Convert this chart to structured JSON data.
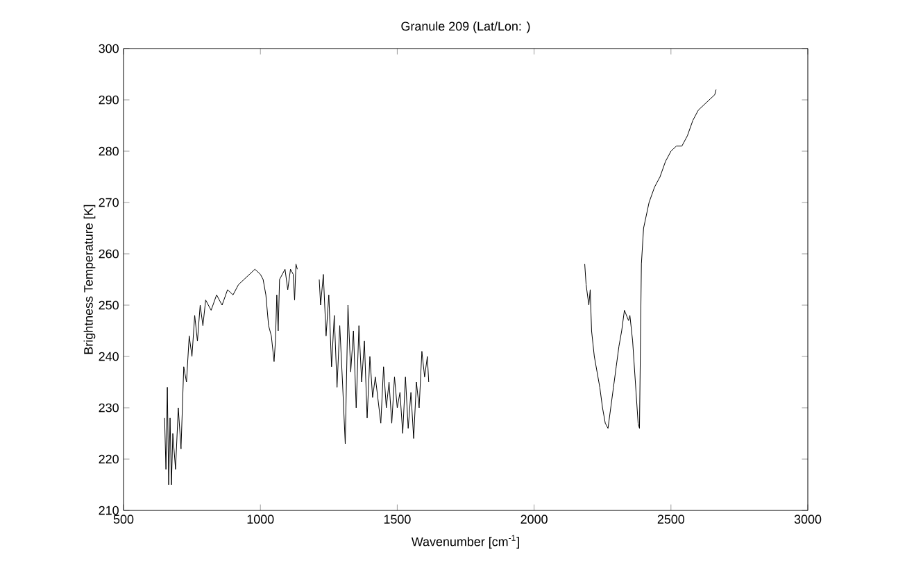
{
  "chart_data": {
    "type": "line",
    "title": "Granule 209 (Lat/Lon: )",
    "xlabel": "Wavenumber [cm$^{-1}$]",
    "ylabel": "Brightness Temperature [K]",
    "x": [
      650,
      655,
      660,
      665,
      670,
      675,
      680,
      690,
      700,
      710,
      720,
      730,
      740,
      750,
      760,
      770,
      780,
      790,
      800,
      820,
      840,
      860,
      880,
      900,
      920,
      940,
      960,
      980,
      1000,
      1010,
      1020,
      1030,
      1040,
      1050,
      1055,
      1060,
      1065,
      1070,
      1080,
      1090,
      1100,
      1110,
      1120,
      1125,
      1130,
      1135,
      1175,
      1215,
      1220,
      1230,
      1240,
      1250,
      1260,
      1270,
      1280,
      1290,
      1300,
      1310,
      1320,
      1330,
      1340,
      1350,
      1360,
      1370,
      1380,
      1390,
      1400,
      1410,
      1420,
      1440,
      1450,
      1460,
      1470,
      1480,
      1490,
      1500,
      1510,
      1520,
      1530,
      1540,
      1550,
      1560,
      1570,
      1580,
      1590,
      1600,
      1610,
      1615,
      1900,
      2185,
      2190,
      2200,
      2205,
      2210,
      2220,
      2230,
      2240,
      2250,
      2260,
      2270,
      2280,
      2290,
      2300,
      2310,
      2320,
      2330,
      2345,
      2350,
      2360,
      2370,
      2380,
      2385,
      2388,
      2392,
      2400,
      2420,
      2440,
      2460,
      2480,
      2500,
      2520,
      2540,
      2560,
      2580,
      2600,
      2620,
      2640,
      2660,
      2665
    ],
    "series": [
      {
        "color": "#000000",
        "values": [
          228,
          218,
          234,
          215,
          228,
          215,
          225,
          218,
          230,
          222,
          238,
          235,
          244,
          240,
          248,
          243,
          250,
          246,
          251,
          249,
          252,
          250,
          253,
          252,
          254,
          255,
          256,
          257,
          256,
          255,
          252,
          246,
          244,
          239,
          243,
          252,
          245,
          255,
          256,
          257,
          253,
          257,
          256,
          251,
          258,
          257,
          null,
          255,
          250,
          256,
          244,
          252,
          238,
          248,
          234,
          246,
          235,
          223,
          250,
          237,
          245,
          230,
          246,
          235,
          243,
          228,
          240,
          232,
          236,
          227,
          238,
          230,
          235,
          227,
          236,
          230,
          233,
          225,
          236,
          226,
          233,
          224,
          235,
          230,
          241,
          236,
          240,
          235,
          null,
          258,
          254,
          250,
          253,
          245,
          240,
          237,
          234,
          230,
          227,
          226,
          230,
          234,
          238,
          242,
          245,
          249,
          247,
          248,
          243,
          235,
          227,
          226,
          240,
          258,
          265,
          270,
          273,
          275,
          278,
          280,
          281,
          281,
          283,
          286,
          288,
          289,
          290,
          291,
          292
        ]
      }
    ],
    "xlim": [
      500,
      3000
    ],
    "ylim": [
      210,
      300
    ],
    "xticks": [
      500,
      1000,
      1500,
      2000,
      2500,
      3000
    ],
    "yticks": [
      210,
      220,
      230,
      240,
      250,
      260,
      270,
      280,
      290,
      300
    ],
    "grid": false,
    "marker": "none",
    "line_style": "solid"
  }
}
